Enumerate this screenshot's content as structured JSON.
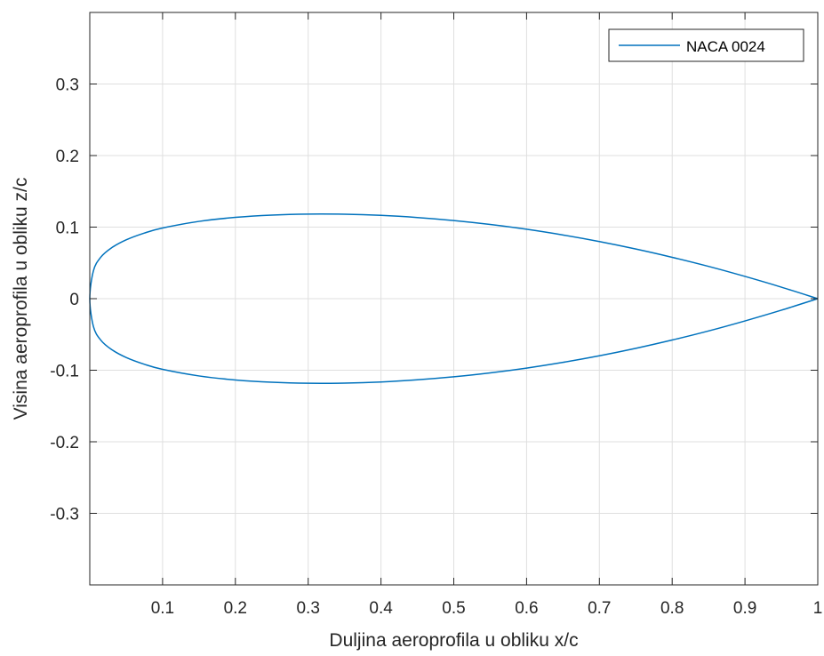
{
  "chart_data": {
    "type": "line",
    "title": "",
    "xlabel": "Duljina aeroprofila u obliku x/c",
    "ylabel": "Visina aeroprofila u obliku z/c",
    "xlim": [
      0,
      1
    ],
    "ylim": [
      -0.4,
      0.4
    ],
    "x_ticks": [
      0.1,
      0.2,
      0.3,
      0.4,
      0.5,
      0.6,
      0.7,
      0.8,
      0.9,
      1
    ],
    "x_tick_labels": [
      "0.1",
      "0.2",
      "0.3",
      "0.4",
      "0.5",
      "0.6",
      "0.7",
      "0.8",
      "0.9",
      "1"
    ],
    "y_ticks": [
      -0.3,
      -0.2,
      -0.1,
      0,
      0.1,
      0.2,
      0.3
    ],
    "y_tick_labels": [
      "-0.3",
      "-0.2",
      "-0.1",
      "0",
      "0.1",
      "0.2",
      "0.3"
    ],
    "grid": true,
    "legend_position": "top-right",
    "series": [
      {
        "name": "NACA 0024",
        "color": "#0072bd",
        "x": [
          1,
          0.95,
          0.9,
          0.85,
          0.8,
          0.75,
          0.7,
          0.65,
          0.6,
          0.55,
          0.5,
          0.45,
          0.4,
          0.35,
          0.3,
          0.25,
          0.2,
          0.15,
          0.1,
          0.075,
          0.05,
          0.03,
          0.015,
          0.005,
          0,
          0.005,
          0.015,
          0.03,
          0.05,
          0.075,
          0.1,
          0.15,
          0.2,
          0.25,
          0.3,
          0.35,
          0.4,
          0.45,
          0.5,
          0.55,
          0.6,
          0.65,
          0.7,
          0.75,
          0.8,
          0.85,
          0.9,
          0.95,
          1
        ],
        "y": [
          0,
          0.0161,
          0.0311,
          0.0451,
          0.0578,
          0.0694,
          0.0798,
          0.089,
          0.097,
          0.1037,
          0.1092,
          0.1134,
          0.1164,
          0.118,
          0.1182,
          0.1168,
          0.1136,
          0.108,
          0.0988,
          0.0917,
          0.0822,
          0.0711,
          0.0578,
          0.0389,
          0,
          -0.0389,
          -0.0578,
          -0.0711,
          -0.0822,
          -0.0917,
          -0.0988,
          -0.108,
          -0.1136,
          -0.1168,
          -0.1182,
          -0.118,
          -0.1164,
          -0.1134,
          -0.1092,
          -0.1037,
          -0.097,
          -0.089,
          -0.0798,
          -0.0694,
          -0.0578,
          -0.0451,
          -0.0311,
          -0.0161,
          0
        ]
      }
    ]
  }
}
